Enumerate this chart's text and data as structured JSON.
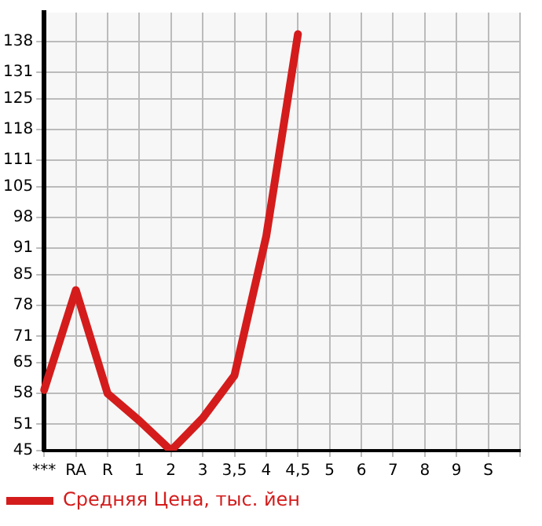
{
  "chart_data": {
    "type": "line",
    "categories": [
      "***",
      "RA",
      "R",
      "1",
      "2",
      "3",
      "3,5",
      "4",
      "4,5",
      "5",
      "6",
      "7",
      "8",
      "9",
      "S"
    ],
    "series": [
      {
        "name": "Средняя Цена, тыс. йен",
        "color": "#d41c1c",
        "values": [
          58.8,
          81.5,
          58,
          51.8,
          45,
          52.4,
          62.1,
          93.7,
          139.7,
          null,
          null,
          null,
          null,
          null,
          null
        ]
      }
    ],
    "ylim": [
      45,
      144.6
    ],
    "yticks": [
      45,
      51,
      58,
      65,
      71,
      78,
      85,
      91,
      98,
      105,
      111,
      118,
      125,
      131,
      138
    ],
    "grid": true,
    "legend": "bottom",
    "marker": "none",
    "line_style": "solid"
  }
}
